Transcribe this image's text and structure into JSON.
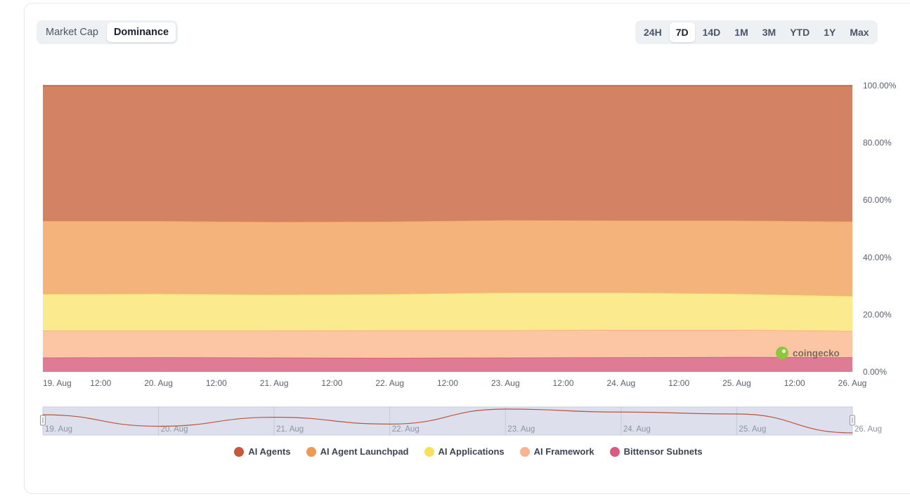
{
  "toggle": {
    "market_cap_label": "Market Cap",
    "dominance_label": "Dominance",
    "active": "Dominance"
  },
  "ranges": {
    "items": [
      "24H",
      "7D",
      "14D",
      "1M",
      "3M",
      "YTD",
      "1Y",
      "Max"
    ],
    "active": "7D"
  },
  "watermark": {
    "text": "coingecko"
  },
  "chart_data": {
    "type": "area",
    "stacked": "percent",
    "x": [
      "19. Aug",
      "20. Aug",
      "21. Aug",
      "22. Aug",
      "23. Aug",
      "24. Aug",
      "25. Aug",
      "26. Aug"
    ],
    "x_tick_labels": [
      "19. Aug",
      "12:00",
      "20. Aug",
      "12:00",
      "21. Aug",
      "12:00",
      "22. Aug",
      "12:00",
      "23. Aug",
      "12:00",
      "24. Aug",
      "12:00",
      "25. Aug",
      "12:00",
      "26. Aug"
    ],
    "y_tick_labels": [
      "0.00%",
      "20.00%",
      "40.00%",
      "60.00%",
      "80.00%",
      "100.00%"
    ],
    "ylim": [
      0,
      100
    ],
    "y_axis_position": "right",
    "grid": false,
    "legend_position": "bottom",
    "series": [
      {
        "name": "Bittensor Subnets",
        "color": "#e07b95",
        "line": "#d9506f",
        "values": [
          5.0,
          5.1,
          5.0,
          4.9,
          5.0,
          5.1,
          5.2,
          5.1
        ]
      },
      {
        "name": "AI Framework",
        "color": "#fcc5a3",
        "line": "#f4a47c",
        "values": [
          9.4,
          9.3,
          9.4,
          9.6,
          9.5,
          9.6,
          9.5,
          9.2
        ]
      },
      {
        "name": "AI Applications",
        "color": "#fcea8e",
        "line": "#f3d25f",
        "values": [
          12.8,
          12.9,
          12.6,
          12.7,
          13.2,
          13.0,
          12.6,
          12.2
        ]
      },
      {
        "name": "AI Agent Launchpad",
        "color": "#f3b37b",
        "line": "#f0a25f",
        "values": [
          25.5,
          25.4,
          25.4,
          25.3,
          25.3,
          25.2,
          25.6,
          26.0
        ]
      },
      {
        "name": "AI Agents",
        "color": "#d48264",
        "line": "#c4593a",
        "values": [
          47.3,
          47.3,
          47.6,
          47.5,
          47.0,
          47.1,
          47.1,
          47.5
        ]
      }
    ],
    "navigator": {
      "labels": [
        "19. Aug",
        "20. Aug",
        "21. Aug",
        "22. Aug",
        "23. Aug",
        "24. Aug",
        "25. Aug",
        "26. Aug"
      ],
      "values": [
        7.4,
        3.2,
        6.5,
        4.0,
        9.5,
        8.4,
        7.7,
        0.8
      ]
    }
  },
  "legend": [
    {
      "label": "AI Agents",
      "color": "#c8573b"
    },
    {
      "label": "AI Agent Launchpad",
      "color": "#ec9a54"
    },
    {
      "label": "AI Applications",
      "color": "#f7e05a"
    },
    {
      "label": "AI Framework",
      "color": "#f7b48e"
    },
    {
      "label": "Bittensor Subnets",
      "color": "#da5a80"
    }
  ]
}
